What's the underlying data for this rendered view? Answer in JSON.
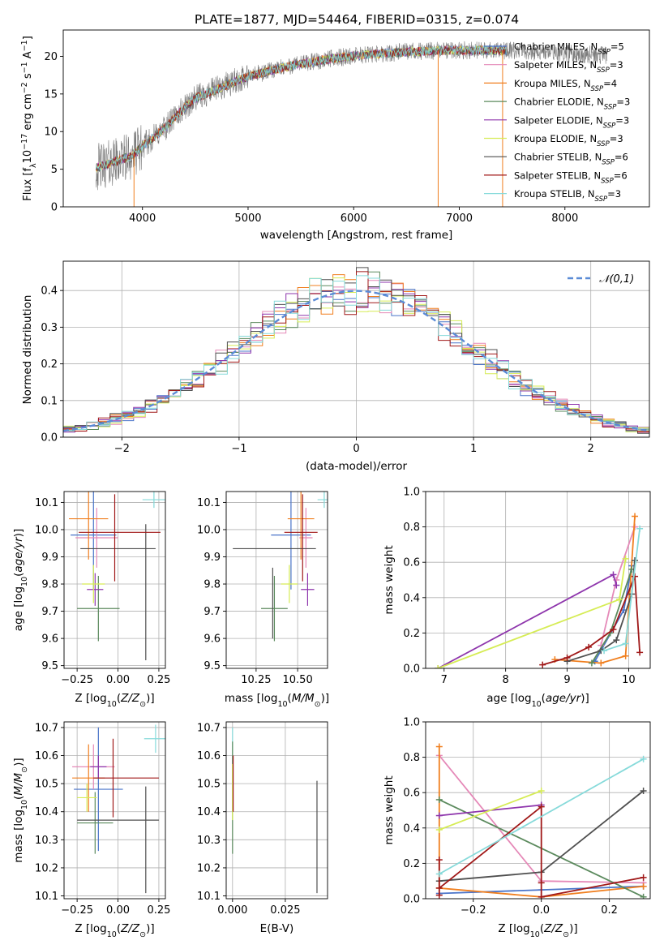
{
  "figure_title": "PLATE=1877, MJD=54464, FIBERID=0315, z=0.074",
  "colors": {
    "Chabrier MILES": "#4a74c9",
    "Salpeter MILES": "#e589b8",
    "Kroupa MILES": "#f07f1f",
    "Chabrier ELODIE": "#5b8a5d",
    "Salpeter ELODIE": "#8e35ac",
    "Kroupa ELODIE": "#d6ec55",
    "Chabrier STELIB": "#4f4f4f",
    "Salpeter STELIB": "#a01818",
    "Kroupa STELIB": "#86dada"
  },
  "chart_data": [
    {
      "id": "spectrum",
      "type": "line",
      "xlabel": "wavelength [Angstrom, rest frame]",
      "ylabel": "Flux [f_λ10^-17 erg cm^-2 s^-1 A^-1]",
      "xlim": [
        3250,
        8800
      ],
      "ylim": [
        0,
        23.5
      ],
      "xticks": [
        4000,
        5000,
        6000,
        7000,
        8000
      ],
      "yticks": [
        0,
        5,
        10,
        15,
        20
      ],
      "legend_location": "right",
      "legend": [
        {
          "label": "Chabrier MILES, N",
          "sub": "SSP",
          "tail": "=5",
          "series": "Chabrier MILES"
        },
        {
          "label": "Salpeter MILES, N",
          "sub": "SSP",
          "tail": "=3",
          "series": "Salpeter MILES"
        },
        {
          "label": "Kroupa MILES, N",
          "sub": "SSP",
          "tail": "=4",
          "series": "Kroupa MILES"
        },
        {
          "label": "Chabrier ELODIE, N",
          "sub": "SSP",
          "tail": "=3",
          "series": "Chabrier ELODIE"
        },
        {
          "label": "Salpeter ELODIE, N",
          "sub": "SSP",
          "tail": "=3",
          "series": "Salpeter ELODIE"
        },
        {
          "label": "Kroupa ELODIE, N",
          "sub": "SSP",
          "tail": "=3",
          "series": "Kroupa ELODIE"
        },
        {
          "label": "Chabrier STELIB, N",
          "sub": "SSP",
          "tail": "=6",
          "series": "Chabrier STELIB"
        },
        {
          "label": "Salpeter STELIB, N",
          "sub": "SSP",
          "tail": "=6",
          "series": "Salpeter STELIB"
        },
        {
          "label": "Kroupa STELIB, N",
          "sub": "SSP",
          "tail": "=3",
          "series": "Kroupa STELIB"
        }
      ],
      "continuum": {
        "x": [
          3560,
          3700,
          3800,
          3900,
          4000,
          4100,
          4200,
          4300,
          4400,
          4500,
          4700,
          4900,
          5000,
          5100,
          5200,
          5300,
          5500,
          5700,
          5900,
          6100,
          6300,
          6500,
          6700,
          6900,
          7100,
          7300,
          7500,
          7700,
          8000,
          8300,
          8400
        ],
        "y": [
          5.2,
          5.8,
          6.3,
          6.8,
          8.0,
          9.2,
          10.3,
          11.8,
          13.2,
          14.4,
          15.6,
          16.8,
          17.3,
          17.7,
          18.0,
          18.4,
          19.0,
          19.5,
          19.9,
          20.2,
          20.4,
          20.6,
          20.7,
          20.8,
          20.8,
          20.8,
          20.7,
          20.6,
          20.4,
          20.2,
          20.1
        ]
      },
      "model_series_range": [
        3560,
        7450
      ],
      "data_range": [
        3560,
        8400
      ],
      "spikes": [
        {
          "x": 3920,
          "y": 0,
          "series": "Kroupa MILES"
        },
        {
          "x": 6800,
          "y": 0,
          "series": "Kroupa MILES"
        },
        {
          "x": 7410,
          "y": 0,
          "series": "Kroupa MILES"
        }
      ]
    },
    {
      "id": "residual-histogram",
      "type": "bar",
      "xlabel": "(data-model)/error",
      "ylabel": "Normed distribution",
      "xlim": [
        -2.5,
        2.5
      ],
      "ylim": [
        0,
        0.48
      ],
      "xticks": [
        -2,
        -1,
        0,
        1,
        2
      ],
      "yticks": [
        0.0,
        0.1,
        0.2,
        0.3,
        0.4
      ],
      "legend": [
        {
          "label": "𝒩(0,1)",
          "style": "dashed",
          "color": "#5b8bd6"
        }
      ],
      "legend_location": "upper right",
      "bin_width": 0.1,
      "bin_start": -2.5,
      "gaussian": {
        "mean": 0,
        "sigma": 1
      }
    },
    {
      "id": "age-vs-Z",
      "type": "scatter",
      "xlabel": "Z [log10(Z/Z⊙)]",
      "ylabel": "age [log10(age/yr)]",
      "xlim": [
        -0.33,
        0.29
      ],
      "ylim": [
        9.49,
        10.14
      ],
      "xticks": [
        -0.25,
        0.0,
        0.25
      ],
      "xticklabels": [
        "−0.25",
        "0.00",
        "0.25"
      ],
      "yticks": [
        9.5,
        9.6,
        9.7,
        9.8,
        9.9,
        10.0,
        10.1
      ],
      "points": [
        {
          "series": "Chabrier MILES",
          "x": -0.15,
          "xerr": 0.14,
          "y": 9.98,
          "yerr": 0.2
        },
        {
          "series": "Salpeter MILES",
          "x": -0.13,
          "xerr": 0.13,
          "y": 9.97,
          "yerr": 0.11
        },
        {
          "series": "Kroupa MILES",
          "x": -0.18,
          "xerr": 0.12,
          "y": 10.04,
          "yerr": 0.15
        },
        {
          "series": "Chabrier ELODIE",
          "x": -0.12,
          "xerr": 0.13,
          "y": 9.71,
          "yerr": 0.12
        },
        {
          "series": "Salpeter ELODIE",
          "x": -0.14,
          "xerr": 0.05,
          "y": 9.78,
          "yerr": 0.06
        },
        {
          "series": "Kroupa ELODIE",
          "x": -0.15,
          "xerr": 0.07,
          "y": 9.8,
          "yerr": 0.07
        },
        {
          "series": "Chabrier STELIB",
          "x": 0.0,
          "xerr": 0.23,
          "y": 9.93,
          "yerr": 0.0
        },
        {
          "series": "Chabrier STELIB",
          "x": 0.17,
          "xerr": 0.0,
          "y": 9.77,
          "yerr": 0.25
        },
        {
          "series": "Salpeter STELIB",
          "x": 0.01,
          "xerr": 0.25,
          "y": 9.99,
          "yerr": 0.0
        },
        {
          "series": "Salpeter STELIB",
          "x": -0.02,
          "xerr": 0.0,
          "y": 9.97,
          "yerr": 0.16
        },
        {
          "series": "Kroupa STELIB",
          "x": 0.22,
          "xerr": 0.07,
          "y": 10.11,
          "yerr": 0.03
        }
      ]
    },
    {
      "id": "age-vs-mass",
      "type": "scatter",
      "xlabel": "mass [log10(M/M⊙)]",
      "ylabel": "",
      "xlim": [
        10.07,
        10.68
      ],
      "ylim": [
        9.49,
        10.14
      ],
      "xticks": [
        10.25,
        10.5
      ],
      "xticklabels": [
        "10.25",
        "10.50"
      ],
      "yticks": [
        9.5,
        9.6,
        9.7,
        9.8,
        9.9,
        10.0,
        10.1
      ],
      "points": [
        {
          "series": "Chabrier MILES",
          "x": 10.46,
          "xerr": 0.12,
          "y": 9.98,
          "yerr": 0.2
        },
        {
          "series": "Salpeter MILES",
          "x": 10.55,
          "xerr": 0.04,
          "y": 9.97,
          "yerr": 0.11
        },
        {
          "series": "Kroupa MILES",
          "x": 10.52,
          "xerr": 0.08,
          "y": 10.04,
          "yerr": 0.15
        },
        {
          "series": "Chabrier ELODIE",
          "x": 10.36,
          "xerr": 0.08,
          "y": 9.71,
          "yerr": 0.12
        },
        {
          "series": "Salpeter ELODIE",
          "x": 10.56,
          "xerr": 0.04,
          "y": 9.78,
          "yerr": 0.06
        },
        {
          "series": "Kroupa ELODIE",
          "x": 10.45,
          "xerr": 0.05,
          "y": 9.8,
          "yerr": 0.07
        },
        {
          "series": "Chabrier STELIB",
          "x": 10.36,
          "xerr": 0.25,
          "y": 9.93,
          "yerr": 0.0
        },
        {
          "series": "Chabrier STELIB",
          "x": 10.35,
          "xerr": 0.0,
          "y": 9.73,
          "yerr": 0.13
        },
        {
          "series": "Salpeter STELIB",
          "x": 10.52,
          "xerr": 0.1,
          "y": 9.99,
          "yerr": 0.0
        },
        {
          "series": "Salpeter STELIB",
          "x": 10.53,
          "xerr": 0.0,
          "y": 9.97,
          "yerr": 0.16
        },
        {
          "series": "Kroupa STELIB",
          "x": 10.66,
          "xerr": 0.04,
          "y": 10.11,
          "yerr": 0.03
        }
      ]
    },
    {
      "id": "weight-vs-age",
      "type": "line",
      "xlabel": "age [log10(age/yr)]",
      "ylabel": "mass weight",
      "xlim": [
        6.7,
        10.35
      ],
      "ylim": [
        0,
        1.0
      ],
      "xticks": [
        7,
        8,
        9,
        10
      ],
      "yticks": [
        0.0,
        0.2,
        0.4,
        0.6,
        0.8,
        1.0
      ],
      "series": [
        {
          "name": "Chabrier MILES",
          "x": [
            9.45,
            9.92,
            10.05
          ],
          "y": [
            0.04,
            0.33,
            0.58
          ]
        },
        {
          "name": "Salpeter MILES",
          "x": [
            9.55,
            9.8,
            10.1
          ],
          "y": [
            0.13,
            0.5,
            0.8
          ]
        },
        {
          "name": "Kroupa MILES",
          "x": [
            8.8,
            9.55,
            9.95,
            10.1
          ],
          "y": [
            0.05,
            0.03,
            0.07,
            0.86
          ]
        },
        {
          "name": "Chabrier ELODIE",
          "x": [
            9.4,
            9.7,
            10.05
          ],
          "y": [
            0.03,
            0.2,
            0.56
          ]
        },
        {
          "name": "Salpeter ELODIE",
          "x": [
            6.9,
            9.75,
            9.8
          ],
          "y": [
            0.0,
            0.53,
            0.47
          ]
        },
        {
          "name": "Kroupa ELODIE",
          "x": [
            6.9,
            9.85,
            9.95
          ],
          "y": [
            0.0,
            0.39,
            0.62
          ]
        },
        {
          "name": "Chabrier STELIB",
          "x": [
            9.0,
            9.55,
            9.8,
            10.05,
            10.1
          ],
          "y": [
            0.04,
            0.1,
            0.16,
            0.42,
            0.61
          ]
        },
        {
          "name": "Salpeter STELIB",
          "x": [
            8.6,
            9.0,
            9.35,
            9.75,
            10.1,
            10.18
          ],
          "y": [
            0.02,
            0.06,
            0.12,
            0.22,
            0.52,
            0.09
          ]
        },
        {
          "name": "Kroupa STELIB",
          "x": [
            9.6,
            9.95,
            10.18
          ],
          "y": [
            0.1,
            0.14,
            0.79
          ]
        }
      ]
    },
    {
      "id": "mass-vs-Z",
      "type": "scatter",
      "xlabel": "Z [log10(Z/Z⊙)]",
      "ylabel": "mass [log10(M/M⊙)]",
      "xlim": [
        -0.33,
        0.29
      ],
      "ylim": [
        10.09,
        10.72
      ],
      "xticks": [
        -0.25,
        0.0,
        0.25
      ],
      "xticklabels": [
        "−0.25",
        "0.00",
        "0.25"
      ],
      "yticks": [
        10.1,
        10.2,
        10.3,
        10.4,
        10.5,
        10.6,
        10.7
      ],
      "points": [
        {
          "series": "Chabrier MILES",
          "x": -0.12,
          "xerr": 0.15,
          "y": 10.48,
          "yerr": 0.22
        },
        {
          "series": "Salpeter MILES",
          "x": -0.15,
          "xerr": 0.13,
          "y": 10.56,
          "yerr": 0.08
        },
        {
          "series": "Kroupa MILES",
          "x": -0.18,
          "xerr": 0.1,
          "y": 10.52,
          "yerr": 0.12
        },
        {
          "series": "Chabrier ELODIE",
          "x": -0.14,
          "xerr": 0.11,
          "y": 10.36,
          "yerr": 0.11
        },
        {
          "series": "Salpeter ELODIE",
          "x": -0.12,
          "xerr": 0.05,
          "y": 10.56,
          "yerr": 0.04
        },
        {
          "series": "Kroupa ELODIE",
          "x": -0.19,
          "xerr": 0.06,
          "y": 10.45,
          "yerr": 0.05
        },
        {
          "series": "Chabrier STELIB",
          "x": 0.0,
          "xerr": 0.25,
          "y": 10.37,
          "yerr": 0.0
        },
        {
          "series": "Chabrier STELIB",
          "x": 0.17,
          "xerr": 0.0,
          "y": 10.3,
          "yerr": 0.19
        },
        {
          "series": "Salpeter STELIB",
          "x": 0.05,
          "xerr": 0.2,
          "y": 10.52,
          "yerr": 0.0
        },
        {
          "series": "Salpeter STELIB",
          "x": -0.03,
          "xerr": 0.0,
          "y": 10.52,
          "yerr": 0.14
        },
        {
          "series": "Kroupa STELIB",
          "x": 0.23,
          "xerr": 0.07,
          "y": 10.66,
          "yerr": 0.05
        }
      ]
    },
    {
      "id": "mass-vs-EBV",
      "type": "scatter",
      "xlabel": "E(B-V)",
      "ylabel": "",
      "xlim": [
        -0.003,
        0.045
      ],
      "ylim": [
        10.09,
        10.72
      ],
      "xticks": [
        0.0,
        0.025
      ],
      "xticklabels": [
        "0.000",
        "0.025"
      ],
      "yticks": [
        10.1,
        10.2,
        10.3,
        10.4,
        10.5,
        10.6,
        10.7
      ],
      "points": [
        {
          "series": "Kroupa STELIB",
          "x": 0.0,
          "xerr": 0.0,
          "y": 10.6,
          "yerr": 0.1
        },
        {
          "series": "Chabrier ELODIE",
          "x": 0.0,
          "xerr": 0.0,
          "y": 10.45,
          "yerr": 0.2
        },
        {
          "series": "Kroupa ELODIE",
          "x": 0.0,
          "xerr": 0.0,
          "y": 10.47,
          "yerr": 0.1
        },
        {
          "series": "Salpeter STELIB",
          "x": 0.0003,
          "xerr": 0.0,
          "y": 10.5,
          "yerr": 0.1
        },
        {
          "series": "Chabrier STELIB",
          "x": 0.04,
          "xerr": 0.0,
          "y": 10.31,
          "yerr": 0.2
        }
      ]
    },
    {
      "id": "weight-vs-Z",
      "type": "line",
      "xlabel": "Z [log10(Z/Z⊙)]",
      "ylabel": "mass weight",
      "xlim": [
        -0.34,
        0.32
      ],
      "ylim": [
        0,
        1.0
      ],
      "xticks": [
        -0.2,
        0.0,
        0.2
      ],
      "xticklabels": [
        "−0.2",
        "0.0",
        "0.2"
      ],
      "yticks": [
        0.0,
        0.2,
        0.4,
        0.6,
        0.8,
        1.0
      ],
      "series": [
        {
          "name": "Chabrier MILES",
          "x": [
            -0.3,
            0.0,
            0.3
          ],
          "y": [
            0.03,
            0.05,
            0.07
          ]
        },
        {
          "name": "Salpeter MILES",
          "x": [
            -0.3,
            0.0,
            0.3
          ],
          "y": [
            0.81,
            0.1,
            0.09
          ]
        },
        {
          "name": "Kroupa MILES",
          "x": [
            -0.3,
            -0.3,
            0.0,
            0.3
          ],
          "y": [
            0.86,
            0.06,
            0.01,
            0.07
          ]
        },
        {
          "name": "Chabrier ELODIE",
          "x": [
            -0.3,
            0.3
          ],
          "y": [
            0.56,
            0.01
          ]
        },
        {
          "name": "Salpeter ELODIE",
          "x": [
            -0.3,
            0.0
          ],
          "y": [
            0.47,
            0.53
          ]
        },
        {
          "name": "Kroupa ELODIE",
          "x": [
            -0.3,
            0.0
          ],
          "y": [
            0.39,
            0.61
          ]
        },
        {
          "name": "Chabrier STELIB",
          "x": [
            -0.3,
            0.0,
            0.3
          ],
          "y": [
            0.1,
            0.15,
            0.61
          ]
        },
        {
          "name": "Salpeter STELIB",
          "x": [
            -0.3,
            -0.3,
            -0.3,
            0.0,
            0.0,
            0.0,
            0.3
          ],
          "y": [
            0.22,
            0.02,
            0.06,
            0.52,
            0.09,
            0.01,
            0.12
          ]
        },
        {
          "name": "Kroupa STELIB",
          "x": [
            -0.3,
            0.3
          ],
          "y": [
            0.14,
            0.79
          ]
        }
      ]
    }
  ]
}
